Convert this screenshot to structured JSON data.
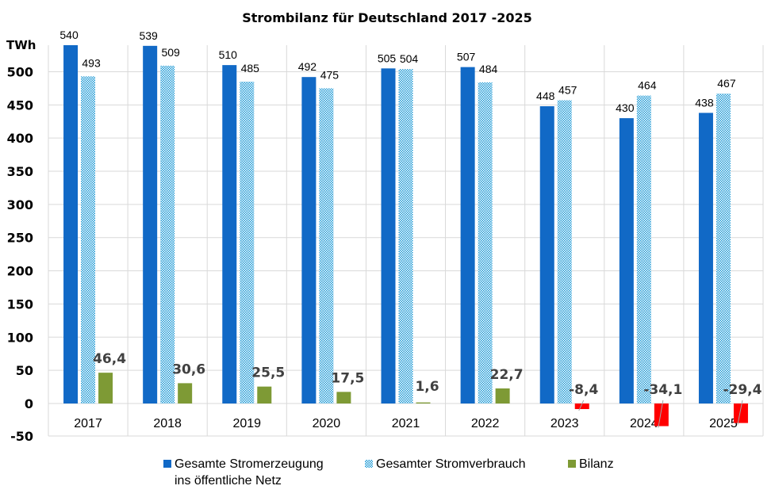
{
  "chart_data": {
    "type": "bar",
    "title": "Strombilanz  für Deutschland  2017 -2025",
    "ylabel": "TWh",
    "xlabel": "",
    "ylim": [
      -50,
      540
    ],
    "yticks": [
      -50,
      0,
      50,
      100,
      150,
      200,
      250,
      300,
      350,
      400,
      450,
      500
    ],
    "grid": true,
    "legend_position": "bottom",
    "categories": [
      "2017",
      "2018",
      "2019",
      "2020",
      "2021",
      "2022",
      "2023",
      "2024",
      "2025"
    ],
    "series": [
      {
        "name": "Gesamte Stromerzeugung ins öffentliche Netz",
        "legend_lines": [
          "Gesamte Stromerzeugung",
          "ins öffentliche Netz"
        ],
        "color": "#1169c6",
        "pattern": "solid",
        "values": [
          540,
          539,
          510,
          492,
          505,
          507,
          448,
          430,
          438
        ],
        "labels": [
          "540",
          "539",
          "510",
          "492",
          "505",
          "507",
          "448",
          "430",
          "438"
        ]
      },
      {
        "name": "Gesamter Stromverbrauch",
        "legend_lines": [
          "Gesamter Stromverbrauch"
        ],
        "color": "#1e9ad6",
        "pattern": "checkerboard",
        "values": [
          493,
          509,
          485,
          475,
          504,
          484,
          457,
          464,
          467
        ],
        "labels": [
          "493",
          "509",
          "485",
          "475",
          "504",
          "484",
          "457",
          "464",
          "467"
        ]
      },
      {
        "name": "Bilanz",
        "legend_lines": [
          "Bilanz"
        ],
        "color": "#7e9a35",
        "negative_color": "#ff0000",
        "pattern": "solid",
        "values": [
          46.4,
          30.6,
          25.5,
          17.5,
          1.6,
          22.7,
          -8.4,
          -34.1,
          -29.4
        ],
        "labels": [
          "46,4",
          "30,6",
          "25,5",
          "17,5",
          "1,6",
          "22,7",
          "-8,4",
          "-34,1",
          "-29,4"
        ]
      }
    ]
  }
}
